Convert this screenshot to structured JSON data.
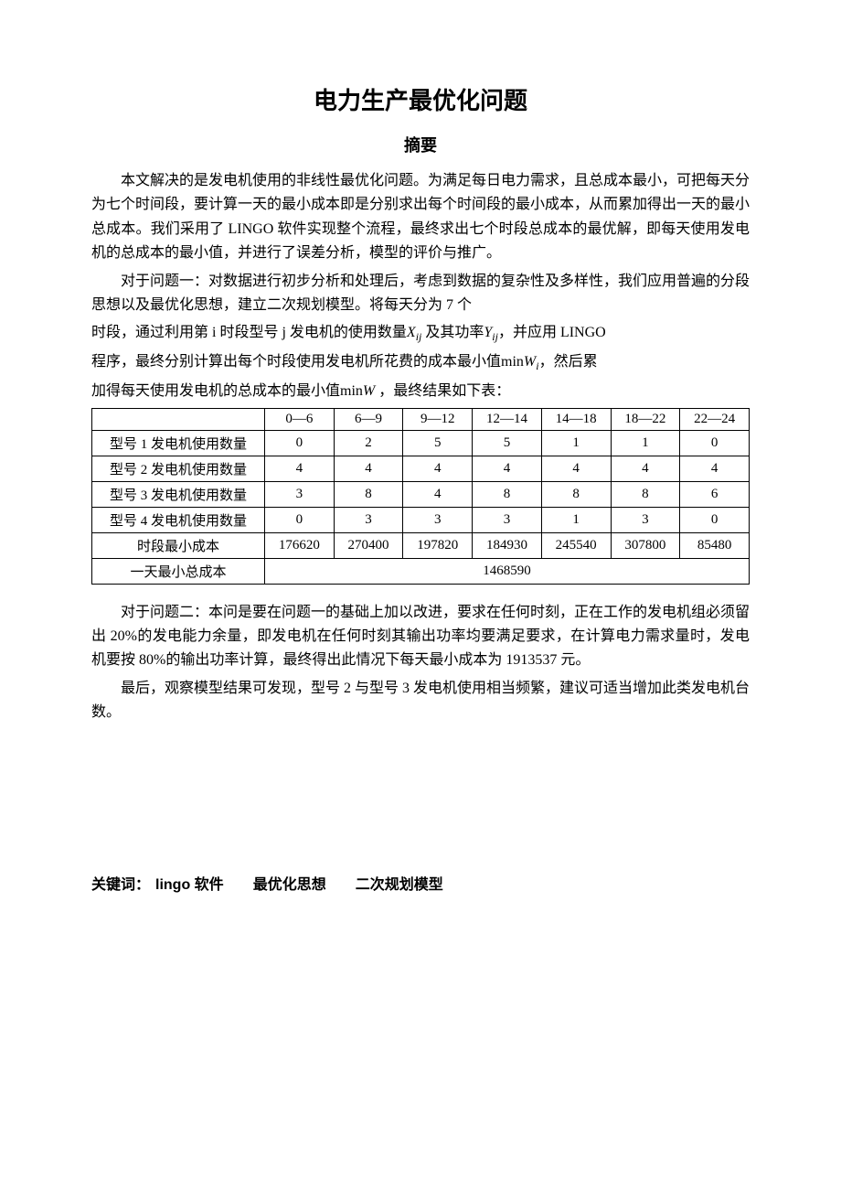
{
  "title": "电力生产最优化问题",
  "subtitle": "摘要",
  "p1a": "本文解决的是发电机使用的非线性最优化问题。为满足每日电力需求，且总成本最小，可把每天分为七个时间段，要计算一天的最小成本即是分别求出每个时间段的最小成本，从而累加得出一天的最小总成本。我们采用了 LINGO 软件实现整个流程，最终求出七个时段总成本的最优解，即每天使用发电机的总成本的最小值，并进行了误差分析，模型的评价与推广。",
  "p1b": "对于问题一：对数据进行初步分析和处理后，考虑到数据的复杂性及多样性，我们应用普遍的分段思想以及最优化思想，建立二次规划模型。将每天分为 7 个",
  "p1c_pre": "时段，通过利用第 i 时段型号 j 发电机的使用数量",
  "p1c_sym1": "X",
  "p1c_sub1": "ij",
  "p1c_mid": " 及其功率",
  "p1c_sym2": "Y",
  "p1c_sub2": "ij",
  "p1c_end": "，并应用 LINGO",
  "p1d_pre": "程序，最终分别计算出每个时段使用发电机所花费的成本最小值",
  "p1d_min1": "min",
  "p1d_w1": "W",
  "p1d_sub": "i",
  "p1d_mid": "，然后累",
  "p1e_pre": "加得每天使用发电机的总成本的最小值",
  "p1e_min": "min",
  "p1e_w": "W",
  "p1e_end": " ，最终结果如下表：",
  "table": {
    "headers": [
      "",
      "0—6",
      "6—9",
      "9—12",
      "12—14",
      "14—18",
      "18—22",
      "22—24"
    ],
    "rows": [
      {
        "label": "型号 1 发电机使用数量",
        "cells": [
          "0",
          "2",
          "5",
          "5",
          "1",
          "1",
          "0"
        ]
      },
      {
        "label": "型号 2 发电机使用数量",
        "cells": [
          "4",
          "4",
          "4",
          "4",
          "4",
          "4",
          "4"
        ]
      },
      {
        "label": "型号 3 发电机使用数量",
        "cells": [
          "3",
          "8",
          "4",
          "8",
          "8",
          "8",
          "6"
        ]
      },
      {
        "label": "型号 4 发电机使用数量",
        "cells": [
          "0",
          "3",
          "3",
          "3",
          "1",
          "3",
          "0"
        ]
      },
      {
        "label": "时段最小成本",
        "cells": [
          "176620",
          "270400",
          "197820",
          "184930",
          "245540",
          "307800",
          "85480"
        ]
      }
    ],
    "total_label": "一天最小总成本",
    "total_value": "1468590"
  },
  "p2a": "对于问题二：本问是要在问题一的基础上加以改进，要求在任何时刻，正在工作的发电机组必须留出 20%的发电能力余量，即发电机在任何时刻其输出功率均要满足要求，在计算电力需求量时，发电机要按 80%的输出功率计算，最终得出此情况下每天最小成本为 1913537 元。",
  "p2b": "最后，观察模型结果可发现，型号 2 与型号 3 发电机使用相当频繁，建议可适当增加此类发电机台数。",
  "keywords_label": "关键词：",
  "keywords": [
    "lingo 软件",
    "最优化思想",
    "二次规划模型"
  ]
}
